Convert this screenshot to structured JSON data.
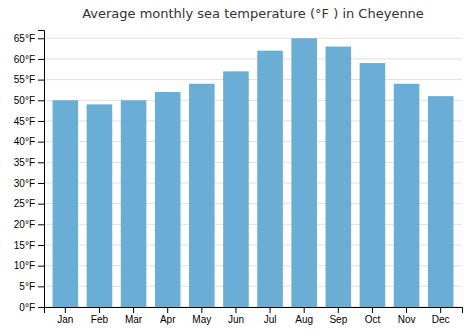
{
  "chart_data": {
    "type": "bar",
    "title": "Average monthly sea temperature (°F ) in Cheyenne",
    "categories": [
      "Jan",
      "Feb",
      "Mar",
      "Apr",
      "May",
      "Jun",
      "Jul",
      "Aug",
      "Sep",
      "Oct",
      "Nov",
      "Dec"
    ],
    "values": [
      50,
      49,
      50,
      52,
      54,
      57,
      62,
      65,
      63,
      59,
      54,
      51
    ],
    "color": "#6aadd5",
    "ylim": [
      0,
      67
    ],
    "yticks": [
      {
        "value": 0,
        "label": "0°F"
      },
      {
        "value": 5,
        "label": "5°F"
      },
      {
        "value": 10,
        "label": "10°F"
      },
      {
        "value": 15,
        "label": "15°F"
      },
      {
        "value": 20,
        "label": "20°F"
      },
      {
        "value": 25,
        "label": "25°F"
      },
      {
        "value": 30,
        "label": "30°F"
      },
      {
        "value": 35,
        "label": "35°F"
      },
      {
        "value": 40,
        "label": "40°F"
      },
      {
        "value": 45,
        "label": "45°F"
      },
      {
        "value": 50,
        "label": "50°F"
      },
      {
        "value": 55,
        "label": "55°F"
      },
      {
        "value": 60,
        "label": "60°F"
      },
      {
        "value": 65,
        "label": "65°F"
      }
    ],
    "grid": true
  }
}
